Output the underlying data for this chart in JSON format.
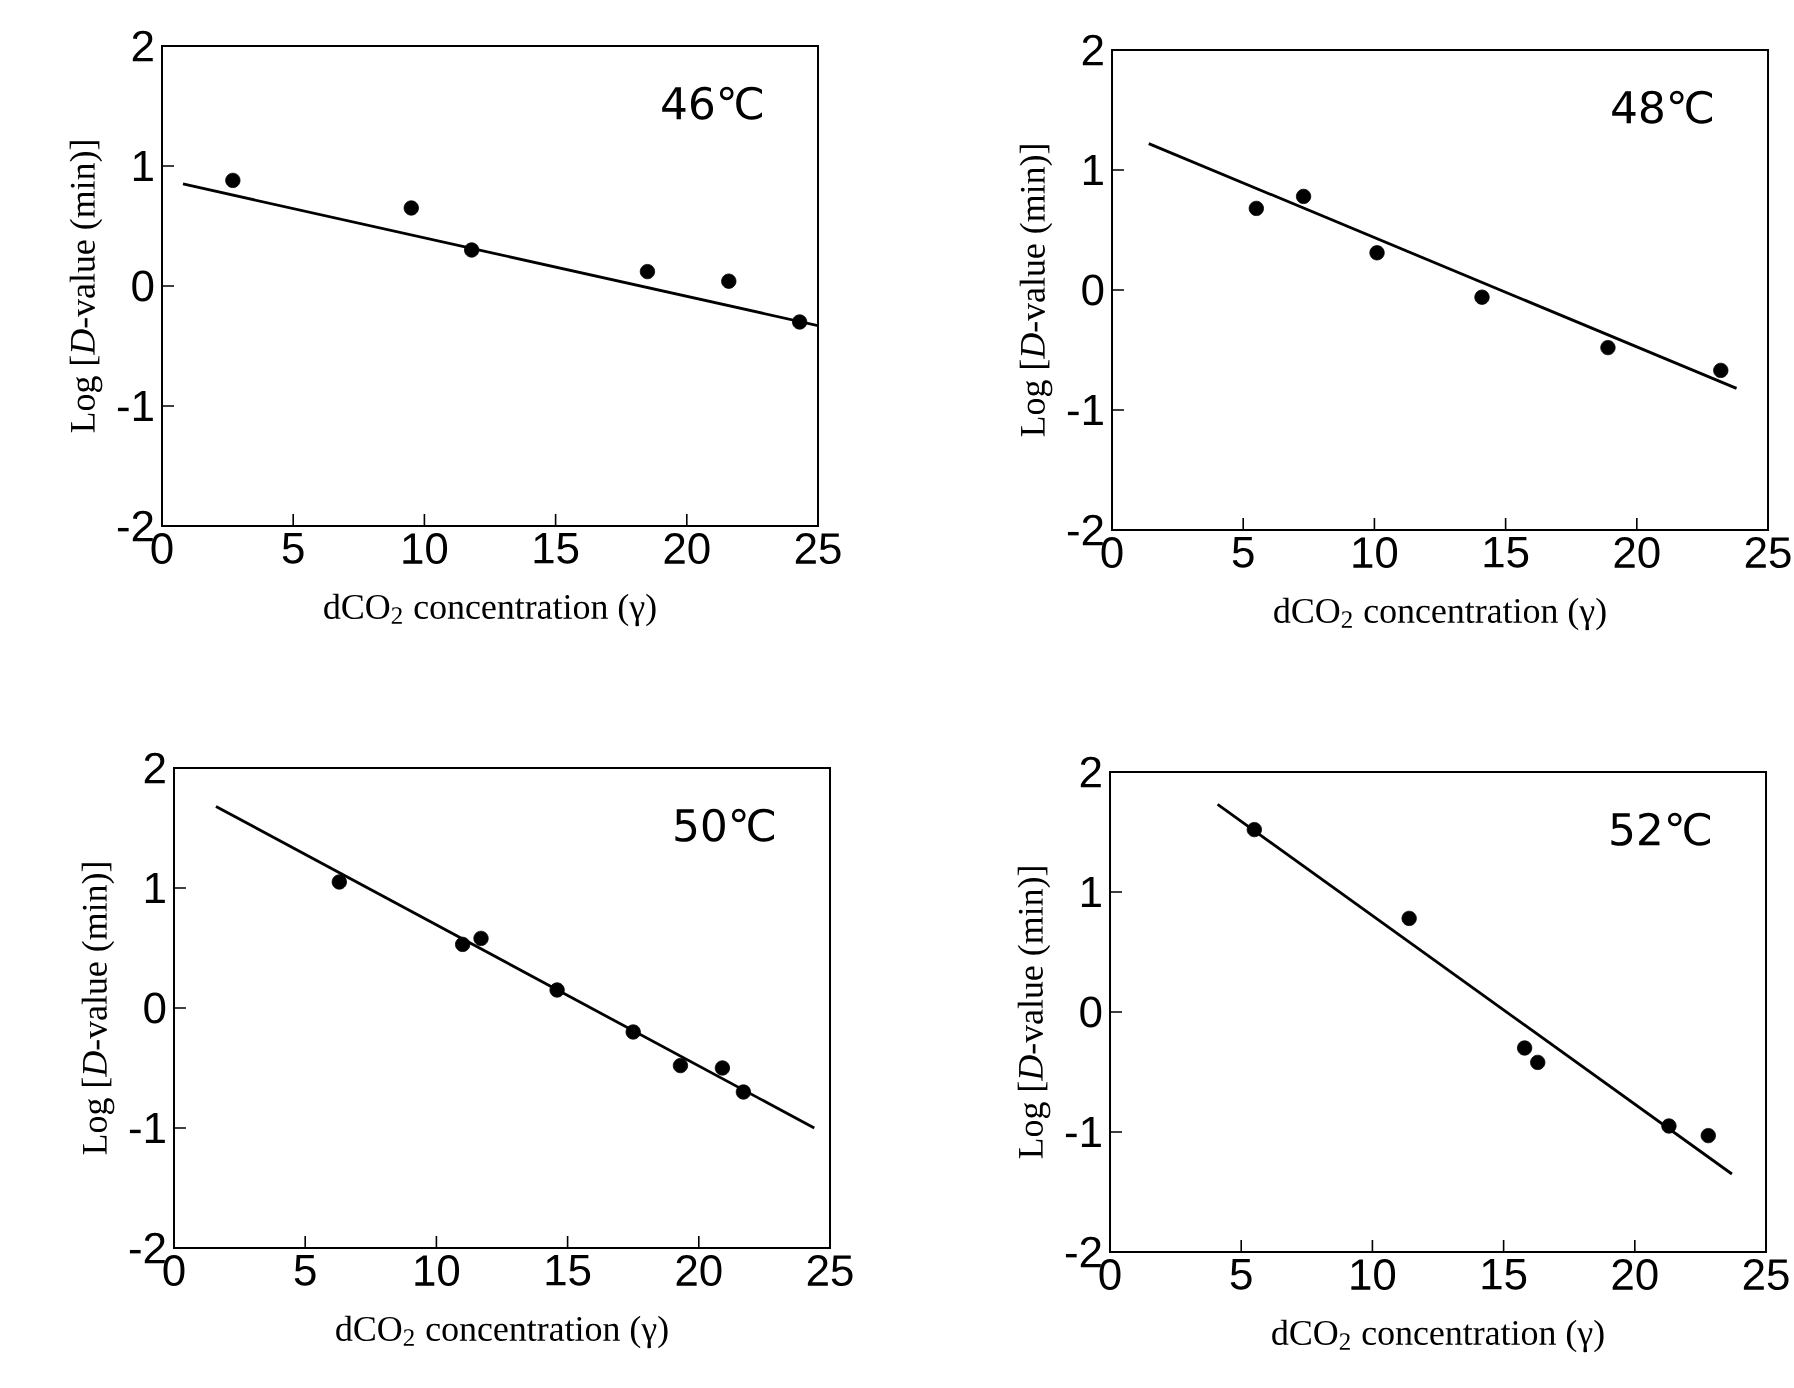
{
  "chart_data": [
    {
      "type": "scatter",
      "xlabel": "dCO$_{2}$ concentration (γ)",
      "ylabel": "Log [*D*-value  (min)]",
      "annotations": [
        "46℃"
      ],
      "xlim": [
        0,
        25
      ],
      "ylim": [
        -2,
        2
      ],
      "xticks": [
        0,
        5,
        10,
        15,
        20,
        25
      ],
      "yticks": [
        -2,
        -1,
        0,
        1,
        2
      ],
      "grid": false,
      "series": [
        {
          "color": "#000000",
          "marker": "circle",
          "x": [
            2.7,
            9.5,
            11.8,
            18.5,
            21.6,
            24.3
          ],
          "values": [
            0.88,
            0.65,
            0.3,
            0.12,
            0.04,
            -0.3
          ]
        },
        {
          "type": "line",
          "marker": "none",
          "color": "#000000",
          "x": [
            0.8,
            25
          ],
          "values": [
            0.85,
            -0.33
          ]
        }
      ]
    },
    {
      "type": "scatter",
      "xlabel": "dCO$_{2}$ concentration (γ)",
      "ylabel": "Log [*D*-value  (min)]",
      "annotations": [
        "48℃"
      ],
      "xlim": [
        0,
        25
      ],
      "ylim": [
        -2,
        2
      ],
      "xticks": [
        0,
        5,
        10,
        15,
        20,
        25
      ],
      "yticks": [
        -2,
        -1,
        0,
        1,
        2
      ],
      "grid": false,
      "series": [
        {
          "color": "#000000",
          "marker": "circle",
          "x": [
            5.5,
            7.3,
            10.1,
            14.1,
            18.9,
            23.2
          ],
          "values": [
            0.68,
            0.78,
            0.31,
            -0.06,
            -0.48,
            -0.67
          ]
        },
        {
          "type": "line",
          "marker": "none",
          "color": "#000000",
          "x": [
            1.4,
            23.8
          ],
          "values": [
            1.22,
            -0.82
          ]
        }
      ]
    },
    {
      "type": "scatter",
      "xlabel": "dCO$_{2}$ concentration (γ)",
      "ylabel": "Log [*D*-value  (min)]",
      "annotations": [
        "50℃"
      ],
      "xlim": [
        0,
        25
      ],
      "ylim": [
        -2,
        2
      ],
      "xticks": [
        0,
        5,
        10,
        15,
        20,
        25
      ],
      "yticks": [
        -2,
        -1,
        0,
        1,
        2
      ],
      "grid": false,
      "series": [
        {
          "color": "#000000",
          "marker": "circle",
          "x": [
            6.3,
            11.0,
            11.7,
            14.6,
            17.5,
            19.3,
            20.9,
            21.7
          ],
          "values": [
            1.05,
            0.53,
            0.58,
            0.15,
            -0.2,
            -0.48,
            -0.5,
            -0.7
          ]
        },
        {
          "type": "line",
          "marker": "none",
          "color": "#000000",
          "x": [
            1.6,
            24.4
          ],
          "values": [
            1.68,
            -1.0
          ]
        }
      ]
    },
    {
      "type": "scatter",
      "xlabel": "dCO$_{2}$ concentration (γ)",
      "ylabel": "Log [*D*-value  (min)]",
      "annotations": [
        "52℃"
      ],
      "xlim": [
        0,
        25
      ],
      "ylim": [
        -2,
        2
      ],
      "xticks": [
        0,
        5,
        10,
        15,
        20,
        25
      ],
      "yticks": [
        -2,
        -1,
        0,
        1,
        2
      ],
      "grid": false,
      "series": [
        {
          "color": "#000000",
          "marker": "circle",
          "x": [
            5.5,
            11.4,
            15.8,
            16.3,
            21.3,
            22.8
          ],
          "values": [
            1.52,
            0.78,
            -0.3,
            -0.42,
            -0.95,
            -1.03
          ]
        },
        {
          "type": "line",
          "marker": "none",
          "color": "#000000",
          "x": [
            4.1,
            23.7
          ],
          "values": [
            1.73,
            -1.35
          ]
        }
      ]
    }
  ]
}
